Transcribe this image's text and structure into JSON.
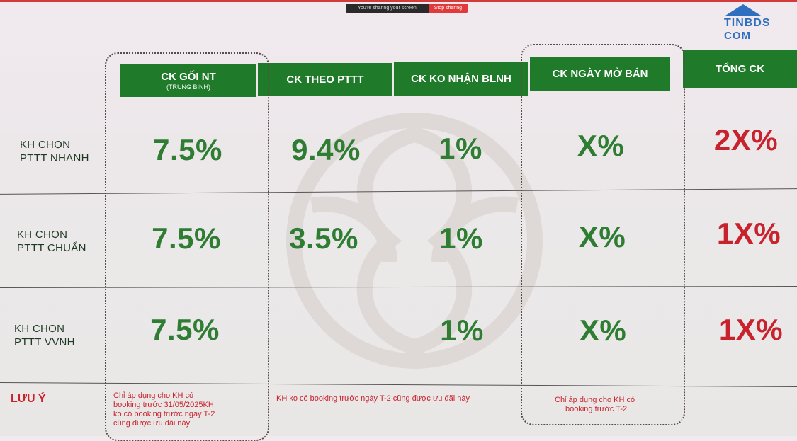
{
  "share_bar": {
    "message": "You're sharing your screen",
    "stop_label": "Stop sharing"
  },
  "logo": {
    "line1": "TINBDS",
    "line2": "COM"
  },
  "headers": [
    {
      "label": "CK GỐI NT",
      "sub": "(TRUNG BÌNH)"
    },
    {
      "label": "CK THEO PTTT",
      "sub": ""
    },
    {
      "label": "CK KO NHẬN BLNH",
      "sub": ""
    },
    {
      "label": "CK NGÀY MỞ BÁN",
      "sub": ""
    },
    {
      "label": "TỔNG CK",
      "sub": ""
    }
  ],
  "rows": [
    {
      "label_line1": "KH CHỌN",
      "label_line2": "PTTT NHANH",
      "values": [
        "7.5%",
        "9.4%",
        "1%",
        "X%",
        "2X%"
      ]
    },
    {
      "label_line1": "KH CHỌN",
      "label_line2": "PTTT CHUẨN",
      "values": [
        "7.5%",
        "3.5%",
        "1%",
        "X%",
        "1X%"
      ]
    },
    {
      "label_line1": "KH CHỌN",
      "label_line2": "PTTT VVNH",
      "values": [
        "7.5%",
        "",
        "1%",
        "X%",
        "1X%"
      ]
    }
  ],
  "notes": {
    "label": "LƯU Ý",
    "col1": [
      "Chỉ áp dụng cho KH có",
      "booking trước 31/05/2025KH",
      "ko có booking trước ngày T-2",
      "cũng được ưu đãi này"
    ],
    "col2": [
      "KH ko có booking trước ngày T-2 cũng được ưu đãi này"
    ],
    "col4": [
      "Chỉ áp dụng cho KH có",
      "booking trước T-2"
    ]
  },
  "colors": {
    "header_green": "#1f7a2a",
    "value_green": "#2e7d32",
    "value_red": "#c8232c"
  }
}
